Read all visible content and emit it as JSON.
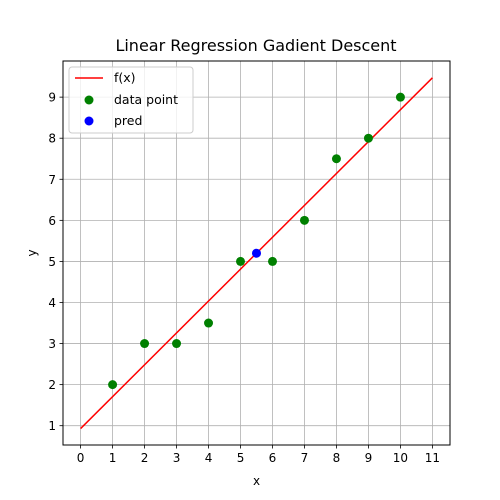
{
  "chart_data": {
    "type": "scatter",
    "title": "Linear Regression Gadient Descent",
    "xlabel": "x",
    "ylabel": "y",
    "xlim": [
      -0.55,
      11.55
    ],
    "ylim": [
      0.53,
      9.88
    ],
    "xticks": [
      0,
      1,
      2,
      3,
      4,
      5,
      6,
      7,
      8,
      9,
      10,
      11
    ],
    "yticks": [
      1,
      2,
      3,
      4,
      5,
      6,
      7,
      8,
      9
    ],
    "grid": true,
    "legend_position": "top-left",
    "series": [
      {
        "name": "f(x)",
        "kind": "line",
        "color": "#ff0000",
        "x": [
          0,
          11
        ],
        "y": [
          0.93,
          9.47
        ]
      },
      {
        "name": "data point",
        "kind": "scatter",
        "color": "#008000",
        "x": [
          1,
          2,
          3,
          4,
          5,
          6,
          7,
          8,
          9,
          10
        ],
        "y": [
          2,
          3,
          3,
          3.5,
          5,
          5,
          6,
          7.5,
          8,
          9
        ]
      },
      {
        "name": "pred",
        "kind": "scatter",
        "color": "#0000ff",
        "x": [
          5.5
        ],
        "y": [
          5.2
        ]
      }
    ]
  }
}
